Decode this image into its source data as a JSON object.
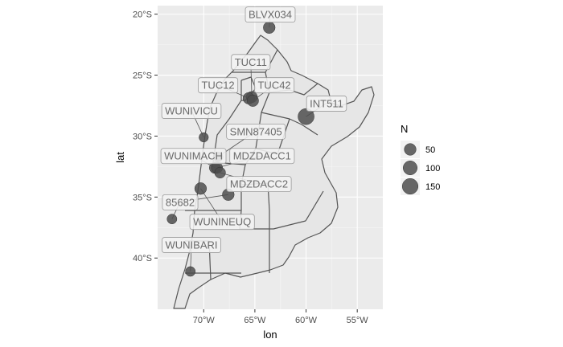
{
  "chart_data": {
    "type": "scatter",
    "xlabel": "lon",
    "ylabel": "lat",
    "xlim": [
      -74.5,
      -52.5
    ],
    "ylim": [
      -44.2,
      -19.3
    ],
    "x_ticks": [
      {
        "value": -70,
        "label": "70°W"
      },
      {
        "value": -65,
        "label": "65°W"
      },
      {
        "value": -60,
        "label": "60°W"
      },
      {
        "value": -55,
        "label": "55°W"
      }
    ],
    "y_ticks": [
      {
        "value": -20,
        "label": "20°S"
      },
      {
        "value": -25,
        "label": "25°S"
      },
      {
        "value": -30,
        "label": "30°S"
      },
      {
        "value": -35,
        "label": "35°S"
      },
      {
        "value": -40,
        "label": "40°S"
      }
    ],
    "size_legend": {
      "title": "N",
      "entries": [
        {
          "label": "50",
          "value": 50
        },
        {
          "label": "100",
          "value": 100
        },
        {
          "label": "150",
          "value": 150
        }
      ]
    },
    "points": [
      {
        "name": "BLVX034",
        "lon": -63.6,
        "lat": -21.1,
        "n": 50,
        "label_lon": -63.5,
        "label_lat": -20.0
      },
      {
        "name": "TUC11",
        "lon": -65.3,
        "lat": -26.8,
        "n": 40,
        "label_lon": -65.4,
        "label_lat": -23.9
      },
      {
        "name": "TUC12",
        "lon": -65.6,
        "lat": -26.9,
        "n": 45,
        "label_lon": -68.6,
        "label_lat": -25.8
      },
      {
        "name": "TUC42",
        "lon": -65.2,
        "lat": -27.1,
        "n": 45,
        "label_lon": -63.1,
        "label_lat": -25.8
      },
      {
        "name": "INT511",
        "lon": -60.0,
        "lat": -28.4,
        "n": 160,
        "label_lon": -58.0,
        "label_lat": -27.3
      },
      {
        "name": "WUNIVICU",
        "lon": -70.0,
        "lat": -30.1,
        "n": 15,
        "label_lon": -71.2,
        "label_lat": -27.9
      },
      {
        "name": "SMN87405",
        "lon": -68.6,
        "lat": -31.7,
        "n": 20,
        "label_lon": -64.9,
        "label_lat": -29.6
      },
      {
        "name": "WUNIMACH",
        "lon": -68.9,
        "lat": -32.6,
        "n": 40,
        "label_lon": -71.0,
        "label_lat": -31.6
      },
      {
        "name": "MDZDACC1",
        "lon": -68.7,
        "lat": -32.6,
        "n": 40,
        "label_lon": -64.3,
        "label_lat": -31.6
      },
      {
        "name": "MDZDACC2",
        "lon": -68.4,
        "lat": -33.0,
        "n": 35,
        "label_lon": -64.6,
        "label_lat": -33.9
      },
      {
        "name": "WUNINEUQ",
        "lon": -70.3,
        "lat": -34.3,
        "n": 50,
        "label_lon": -68.2,
        "label_lat": -37.0
      },
      {
        "name": "85682",
        "lon": -67.6,
        "lat": -34.8,
        "n": 50,
        "label_lon": -72.3,
        "label_lat": -35.4
      },
      {
        "name": "85682",
        "lon": -73.1,
        "lat": -36.8,
        "n": 20,
        "label_lon": -72.3,
        "label_lat": -35.4
      },
      {
        "name": "WUNIBARI",
        "lon": -71.3,
        "lat": -41.1,
        "n": 20,
        "label_lon": -71.2,
        "label_lat": -38.9
      }
    ]
  }
}
